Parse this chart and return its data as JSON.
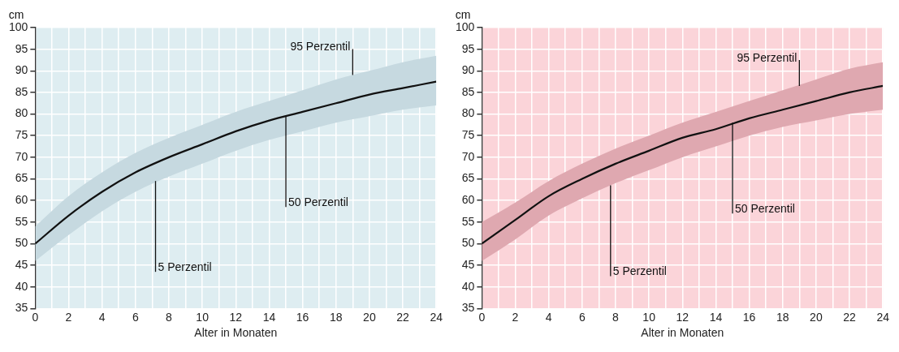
{
  "chart_data": [
    {
      "type": "line",
      "ylabel": "cm",
      "xlabel": "Alter in Monaten",
      "x": [
        0,
        2,
        4,
        6,
        8,
        10,
        12,
        14,
        16,
        18,
        20,
        22,
        24
      ],
      "series": [
        {
          "color": "#111111",
          "values": [
            50,
            56.5,
            62,
            66.5,
            70,
            73,
            76,
            78.5,
            80.5,
            82.5,
            84.5,
            86,
            87.5
          ],
          "lower": [
            46,
            52,
            57.5,
            62,
            65.5,
            68.5,
            71.5,
            74,
            76,
            78,
            79.5,
            81,
            82
          ],
          "upper": [
            54,
            61,
            66.5,
            71,
            74.5,
            77.5,
            80.5,
            83,
            85.5,
            88,
            90,
            92,
            93.5
          ]
        }
      ],
      "xlim": [
        0,
        24
      ],
      "ylim": [
        35,
        100
      ],
      "xticks": [
        0,
        {
          "value": 1,
          "label": null
        },
        2,
        {
          "value": 3,
          "label": null
        },
        4,
        {
          "value": 5,
          "label": null
        },
        6,
        {
          "value": 7,
          "label": null
        },
        8,
        {
          "value": 9,
          "label": null
        },
        10,
        {
          "value": 11,
          "label": null
        },
        12,
        {
          "value": 13,
          "label": null
        },
        14,
        {
          "value": 15,
          "label": null
        },
        16,
        {
          "value": 17,
          "label": null
        },
        18,
        {
          "value": 19,
          "label": null
        },
        20,
        {
          "value": 21,
          "label": null
        },
        22,
        {
          "value": 23,
          "label": null
        },
        24
      ],
      "yticks": [
        35,
        40,
        45,
        50,
        55,
        60,
        65,
        70,
        75,
        80,
        85,
        90,
        95,
        100
      ],
      "grid": true,
      "legend": false,
      "marker": "none",
      "line_style": "solid",
      "annotations": [
        {
          "text": "95 Perzentil",
          "x": 19,
          "y": 89
        },
        {
          "text": "50 Perzentil",
          "x": 15,
          "y": 79.5
        },
        {
          "text": "5 Perzentil",
          "x": 7.2,
          "y": 64.5
        }
      ]
    },
    {
      "type": "line",
      "ylabel": "cm",
      "xlabel": "Alter in Monaten",
      "x": [
        0,
        2,
        4,
        6,
        8,
        10,
        12,
        14,
        16,
        18,
        20,
        22,
        24
      ],
      "series": [
        {
          "color": "#111111",
          "values": [
            50,
            55.5,
            61,
            65,
            68.5,
            71.5,
            74.5,
            76.5,
            79,
            81,
            83,
            85,
            86.5
          ],
          "lower": [
            46,
            51,
            56.5,
            60.5,
            64,
            67,
            70,
            72.5,
            75,
            77,
            78.5,
            80,
            81
          ],
          "upper": [
            55,
            59.5,
            64.5,
            68.5,
            72,
            75,
            78,
            80.5,
            83,
            85.5,
            88,
            90.5,
            92
          ]
        }
      ],
      "xlim": [
        0,
        24
      ],
      "ylim": [
        35,
        100
      ],
      "xticks": [
        0,
        {
          "value": 1,
          "label": null
        },
        2,
        {
          "value": 3,
          "label": null
        },
        4,
        {
          "value": 5,
          "label": null
        },
        6,
        {
          "value": 7,
          "label": null
        },
        8,
        {
          "value": 9,
          "label": null
        },
        10,
        {
          "value": 11,
          "label": null
        },
        12,
        {
          "value": 13,
          "label": null
        },
        14,
        {
          "value": 15,
          "label": null
        },
        16,
        {
          "value": 17,
          "label": null
        },
        18,
        {
          "value": 19,
          "label": null
        },
        20,
        {
          "value": 21,
          "label": null
        },
        22,
        {
          "value": 23,
          "label": null
        },
        24
      ],
      "yticks": [
        35,
        40,
        45,
        50,
        55,
        60,
        65,
        70,
        75,
        80,
        85,
        90,
        95,
        100
      ],
      "grid": true,
      "legend": false,
      "marker": "none",
      "line_style": "solid",
      "annotations": [
        {
          "text": "95 Perzentil",
          "x": 19,
          "y": 86.5
        },
        {
          "text": "50 Perzentil",
          "x": 15,
          "y": 78
        },
        {
          "text": "5 Perzentil",
          "x": 7.7,
          "y": 63.5
        }
      ]
    }
  ]
}
